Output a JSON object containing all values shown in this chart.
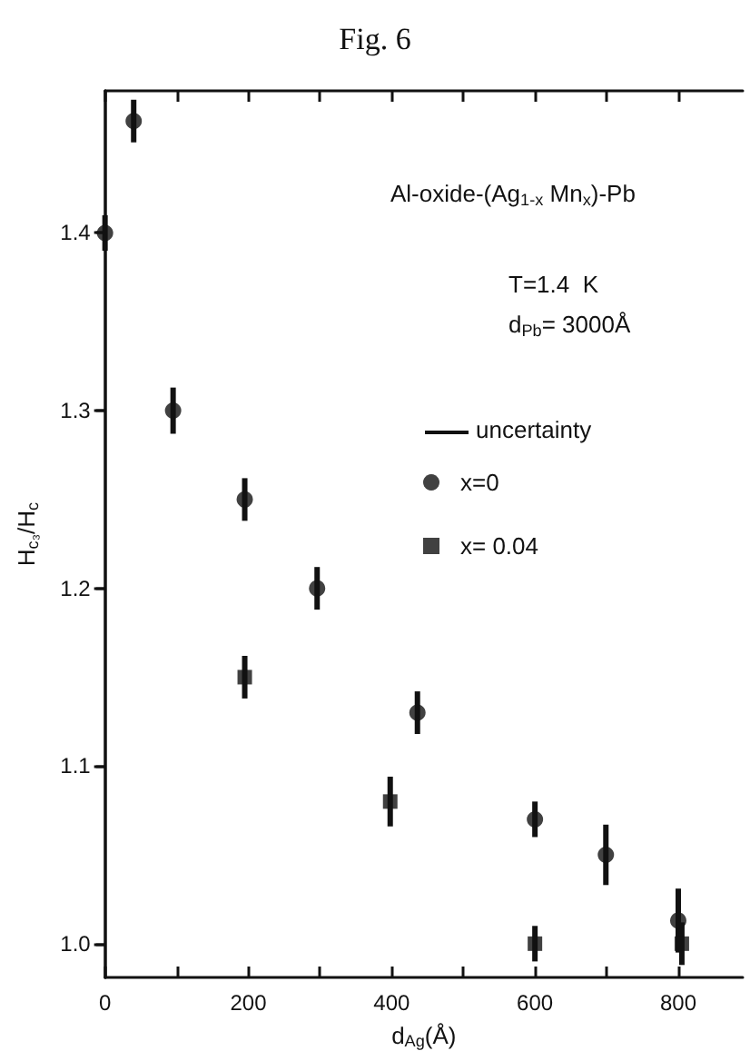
{
  "chart_data": {
    "type": "scatter",
    "title": "Fig. 6",
    "xlabel": "d$_{Ag}$(Å)",
    "ylabel": "H$_{c₃}$/H$_{c}$",
    "annotations": [
      "Al-oxide-(Ag$_{1-x}$ Mn$_{x}$)-Pb",
      "T=1.4  K",
      "d$_{Pb}$= 3000Å",
      "uncertainty"
    ],
    "xlim": [
      0,
      890
    ],
    "xticks": [
      0,
      {
        "value": 100,
        "label": null
      },
      200,
      {
        "value": 300,
        "label": null
      },
      400,
      {
        "value": 500,
        "label": null
      },
      600,
      {
        "value": 700,
        "label": null
      },
      800
    ],
    "ylim": [
      0.981,
      1.48
    ],
    "yticks": [
      {
        "value": 1,
        "label": "1.0"
      },
      1.1,
      1.2,
      1.3,
      1.4
    ],
    "legend": "right",
    "grid": false,
    "series": [
      {
        "name": "x=0",
        "color": "#111111",
        "marker": "circle",
        "x": [
          0,
          40,
          95,
          195,
          296,
          436,
          600,
          699,
          800
        ],
        "values": [
          1.4,
          1.463,
          1.3,
          1.25,
          1.2,
          1.13,
          1.07,
          1.05,
          1.013
        ],
        "errors": [
          0.01,
          0.012,
          0.013,
          0.012,
          0.012,
          0.012,
          0.01,
          0.017,
          0.018
        ]
      },
      {
        "name": "x= 0.04",
        "color": "#111111",
        "marker": "square",
        "x": [
          195,
          398,
          600,
          805
        ],
        "values": [
          1.15,
          1.08,
          1.0,
          1.0
        ],
        "errors": [
          0.012,
          0.014,
          0.01,
          0.012
        ]
      }
    ]
  }
}
